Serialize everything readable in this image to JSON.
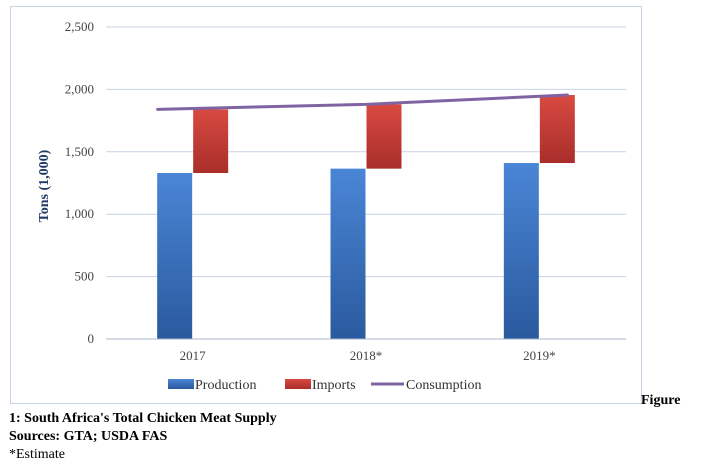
{
  "chart_data": {
    "type": "bar",
    "stacked": true,
    "categories": [
      "2017",
      "2018*",
      "2019*"
    ],
    "series": [
      {
        "name": "Production",
        "kind": "bar",
        "color": "#3a73c4",
        "values": [
          1330,
          1365,
          1410
        ]
      },
      {
        "name": "Imports",
        "kind": "bar",
        "color": "#c23b35",
        "values": [
          510,
          515,
          545
        ]
      },
      {
        "name": "Consumption",
        "kind": "line",
        "color": "#8064a2",
        "values": [
          1840,
          1880,
          1955
        ]
      }
    ],
    "ylabel": "Tons (1,000)",
    "ylim": [
      0,
      2500
    ],
    "yticks": [
      "0",
      "500",
      "1,000",
      "1,500",
      "2,000",
      "2,500"
    ],
    "ytick_values": [
      0,
      500,
      1000,
      1500,
      2000,
      2500
    ],
    "grid": true,
    "legend": "bottom"
  },
  "caption": {
    "figure_word": "Figure",
    "title": "1: South Africa's Total Chicken Meat Supply",
    "sources": "Sources: GTA; USDA FAS",
    "note": "*Estimate"
  }
}
